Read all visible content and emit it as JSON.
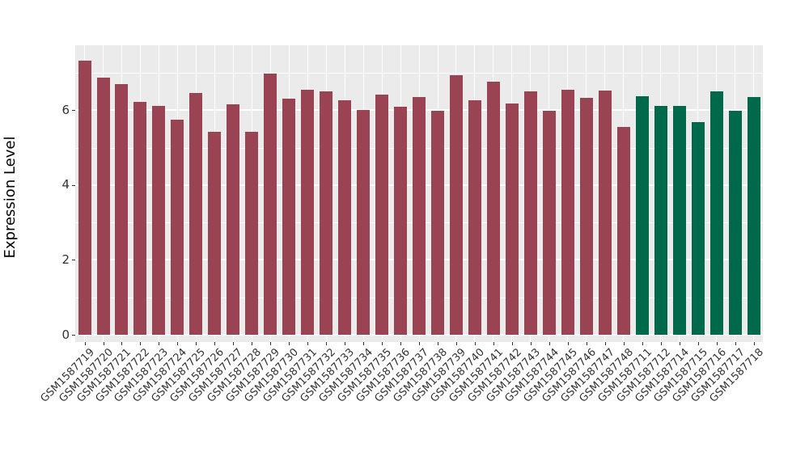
{
  "chart_data": {
    "type": "bar",
    "title": "",
    "xlabel": "",
    "ylabel": "Expression Level",
    "ylim": [
      0,
      7.7
    ],
    "yticks": [
      0,
      2,
      4,
      6
    ],
    "minor_yticks": [
      1,
      3,
      5,
      7
    ],
    "grid": true,
    "legend_position": "none",
    "panel_bg": "#EBEBEB",
    "grid_color": "#FFFFFF",
    "axis_text_color": "#333333",
    "group_colors": {
      "red": "#9A4453",
      "green": "#00684B"
    },
    "bars": [
      {
        "label": "GSM1587719",
        "value": 7.33,
        "group": "red"
      },
      {
        "label": "GSM1587720",
        "value": 6.88,
        "group": "red"
      },
      {
        "label": "GSM1587721",
        "value": 6.69,
        "group": "red"
      },
      {
        "label": "GSM1587722",
        "value": 6.22,
        "group": "red"
      },
      {
        "label": "GSM1587723",
        "value": 6.11,
        "group": "red"
      },
      {
        "label": "GSM1587724",
        "value": 5.74,
        "group": "red"
      },
      {
        "label": "GSM1587725",
        "value": 6.45,
        "group": "red"
      },
      {
        "label": "GSM1587726",
        "value": 5.43,
        "group": "red"
      },
      {
        "label": "GSM1587727",
        "value": 6.16,
        "group": "red"
      },
      {
        "label": "GSM1587728",
        "value": 5.43,
        "group": "red"
      },
      {
        "label": "GSM1587729",
        "value": 6.97,
        "group": "red"
      },
      {
        "label": "GSM1587730",
        "value": 6.31,
        "group": "red"
      },
      {
        "label": "GSM1587731",
        "value": 6.55,
        "group": "red"
      },
      {
        "label": "GSM1587732",
        "value": 6.5,
        "group": "red"
      },
      {
        "label": "GSM1587733",
        "value": 6.26,
        "group": "red"
      },
      {
        "label": "GSM1587734",
        "value": 6.0,
        "group": "red"
      },
      {
        "label": "GSM1587735",
        "value": 6.42,
        "group": "red"
      },
      {
        "label": "GSM1587736",
        "value": 6.09,
        "group": "red"
      },
      {
        "label": "GSM1587737",
        "value": 6.36,
        "group": "red"
      },
      {
        "label": "GSM1587738",
        "value": 5.98,
        "group": "red"
      },
      {
        "label": "GSM1587739",
        "value": 6.94,
        "group": "red"
      },
      {
        "label": "GSM1587740",
        "value": 6.26,
        "group": "red"
      },
      {
        "label": "GSM1587741",
        "value": 6.76,
        "group": "red"
      },
      {
        "label": "GSM1587742",
        "value": 6.18,
        "group": "red"
      },
      {
        "label": "GSM1587743",
        "value": 6.5,
        "group": "red"
      },
      {
        "label": "GSM1587744",
        "value": 5.98,
        "group": "red"
      },
      {
        "label": "GSM1587745",
        "value": 6.55,
        "group": "red"
      },
      {
        "label": "GSM1587746",
        "value": 6.34,
        "group": "red"
      },
      {
        "label": "GSM1587747",
        "value": 6.52,
        "group": "red"
      },
      {
        "label": "GSM1587748",
        "value": 5.55,
        "group": "red"
      },
      {
        "label": "GSM1587711",
        "value": 6.37,
        "group": "green"
      },
      {
        "label": "GSM1587712",
        "value": 6.12,
        "group": "green"
      },
      {
        "label": "GSM1587714",
        "value": 6.11,
        "group": "green"
      },
      {
        "label": "GSM1587715",
        "value": 5.68,
        "group": "green"
      },
      {
        "label": "GSM1587716",
        "value": 6.5,
        "group": "green"
      },
      {
        "label": "GSM1587717",
        "value": 5.98,
        "group": "green"
      },
      {
        "label": "GSM1587718",
        "value": 6.36,
        "group": "green"
      }
    ]
  }
}
